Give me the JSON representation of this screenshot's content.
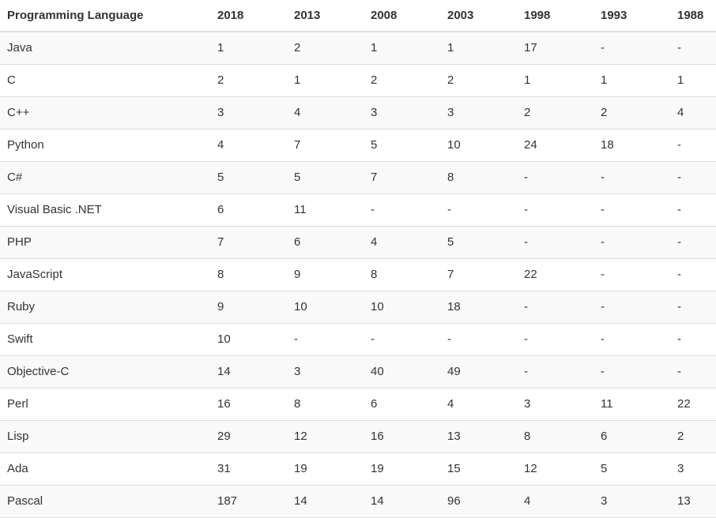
{
  "table": {
    "headers": [
      "Programming Language",
      "2018",
      "2013",
      "2008",
      "2003",
      "1998",
      "1993",
      "1988"
    ],
    "rows": [
      [
        "Java",
        "1",
        "2",
        "1",
        "1",
        "17",
        "-",
        "-"
      ],
      [
        "C",
        "2",
        "1",
        "2",
        "2",
        "1",
        "1",
        "1"
      ],
      [
        "C++",
        "3",
        "4",
        "3",
        "3",
        "2",
        "2",
        "4"
      ],
      [
        "Python",
        "4",
        "7",
        "5",
        "10",
        "24",
        "18",
        "-"
      ],
      [
        "C#",
        "5",
        "5",
        "7",
        "8",
        "-",
        "-",
        "-"
      ],
      [
        "Visual Basic .NET",
        "6",
        "11",
        "-",
        "-",
        "-",
        "-",
        "-"
      ],
      [
        "PHP",
        "7",
        "6",
        "4",
        "5",
        "-",
        "-",
        "-"
      ],
      [
        "JavaScript",
        "8",
        "9",
        "8",
        "7",
        "22",
        "-",
        "-"
      ],
      [
        "Ruby",
        "9",
        "10",
        "10",
        "18",
        "-",
        "-",
        "-"
      ],
      [
        "Swift",
        "10",
        "-",
        "-",
        "-",
        "-",
        "-",
        "-"
      ],
      [
        "Objective-C",
        "14",
        "3",
        "40",
        "49",
        "-",
        "-",
        "-"
      ],
      [
        "Perl",
        "16",
        "8",
        "6",
        "4",
        "3",
        "11",
        "22"
      ],
      [
        "Lisp",
        "29",
        "12",
        "16",
        "13",
        "8",
        "6",
        "2"
      ],
      [
        "Ada",
        "31",
        "19",
        "19",
        "15",
        "12",
        "5",
        "3"
      ],
      [
        "Pascal",
        "187",
        "14",
        "14",
        "96",
        "4",
        "3",
        "13"
      ]
    ]
  }
}
